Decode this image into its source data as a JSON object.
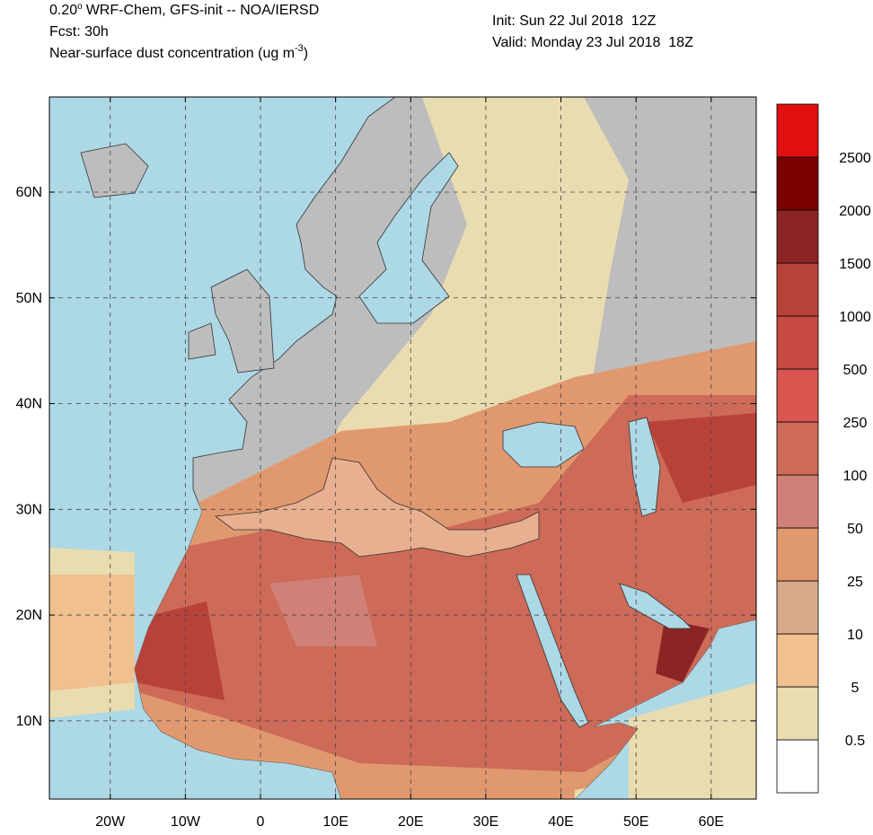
{
  "header": {
    "title_value": "0.20",
    "title_degree": "o",
    "title_rest": "WRF-Chem, GFS-init -- NOA/IERSD",
    "forecast": "Fcst: 30h",
    "variable": "Near-surface dust concentration (ug m",
    "variable_exp": "-3",
    "variable_end": ")",
    "init": "Init: Sun 22 Jul 2018  12Z",
    "valid": "Valid: Monday 23 Jul 2018  18Z"
  },
  "map": {
    "lonlim": [
      -28.1,
      66
    ],
    "latlim": [
      2.6,
      69
    ],
    "lon_ticks": [
      {
        "value": -20,
        "label": "20W"
      },
      {
        "value": -10,
        "label": "10W"
      },
      0,
      {
        "value": 10,
        "label": "10E"
      },
      {
        "value": 20,
        "label": "20E"
      },
      {
        "value": 30,
        "label": "30E"
      },
      {
        "value": 40,
        "label": "40E"
      },
      {
        "value": 50,
        "label": "50E"
      },
      {
        "value": 60,
        "label": "60E"
      }
    ],
    "lat_ticks": [
      {
        "value": 60,
        "label": "60N"
      },
      {
        "value": 50,
        "label": "50N"
      },
      {
        "value": 40,
        "label": "40N"
      },
      {
        "value": 30,
        "label": "30N"
      },
      {
        "value": 20,
        "label": "20N"
      },
      {
        "value": 10,
        "label": "10N"
      }
    ],
    "grid": true
  },
  "colorbar": {
    "levels": [
      0.5,
      5,
      10,
      25,
      50,
      100,
      250,
      500,
      1000,
      1500,
      2000,
      2500
    ],
    "colors": [
      "#ffffff",
      "#e9dcb0",
      "#f0c08e",
      "#d8aa8a",
      "#e0996f",
      "#d08078",
      "#cd6a58",
      "#d9554f",
      "#c74a44",
      "#b8423a",
      "#8b2525",
      "#7a0000",
      "#e01010"
    ]
  }
}
